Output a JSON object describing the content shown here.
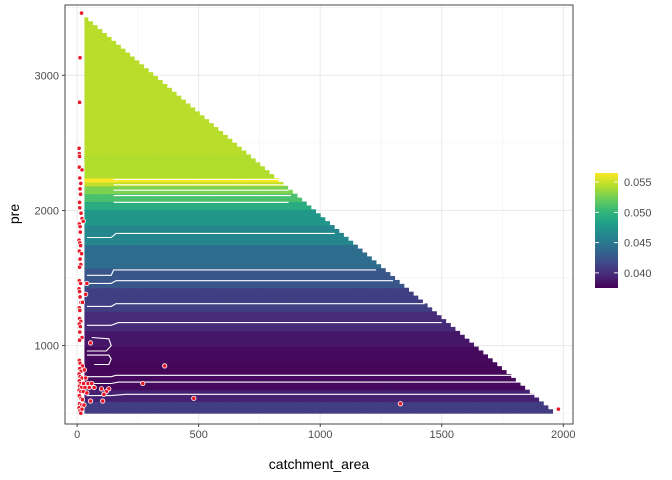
{
  "chart_data": {
    "type": "heatmap",
    "xlabel": "catchment_area",
    "ylabel": "pre",
    "xlim": [
      -50,
      2040
    ],
    "ylim": [
      420,
      3520
    ],
    "x_ticks": [
      0,
      500,
      1000,
      1500,
      2000
    ],
    "x_tick_labels": [
      "0",
      "500",
      "1000",
      "1500",
      "2000"
    ],
    "y_ticks": [
      1000,
      2000,
      3000
    ],
    "y_tick_labels": [
      "1000",
      "2000",
      "3000"
    ],
    "grid": true,
    "legend": {
      "position": "right",
      "type": "colorbar",
      "range": [
        0.0375,
        0.0565
      ],
      "ticks": [
        0.04,
        0.045,
        0.05,
        0.055
      ],
      "tick_labels": [
        "0.040",
        "0.045",
        "0.050",
        "0.055"
      ],
      "palette": "viridis"
    },
    "grid_region": {
      "x_start": 30,
      "top_left_y": 3450,
      "bottom_right": [
        1975,
        500
      ],
      "step_x": 39,
      "step_y": 29
    },
    "value_bands": [
      {
        "y0": 500,
        "y1": 580,
        "value": 0.0408
      },
      {
        "y0": 580,
        "y1": 680,
        "value": 0.0392
      },
      {
        "y0": 680,
        "y1": 780,
        "value": 0.038
      },
      {
        "y0": 780,
        "y1": 880,
        "value": 0.0378
      },
      {
        "y0": 880,
        "y1": 1000,
        "value": 0.038
      },
      {
        "y0": 1000,
        "y1": 1100,
        "value": 0.0387
      },
      {
        "y0": 1100,
        "y1": 1250,
        "value": 0.0397
      },
      {
        "y0": 1250,
        "y1": 1420,
        "value": 0.041
      },
      {
        "y0": 1420,
        "y1": 1560,
        "value": 0.0425
      },
      {
        "y0": 1560,
        "y1": 1760,
        "value": 0.0442
      },
      {
        "y0": 1760,
        "y1": 1900,
        "value": 0.0462
      },
      {
        "y0": 1900,
        "y1": 2000,
        "value": 0.0476
      },
      {
        "y0": 2000,
        "y1": 2080,
        "value": 0.0492
      },
      {
        "y0": 2080,
        "y1": 2130,
        "value": 0.051
      },
      {
        "y0": 2130,
        "y1": 2180,
        "value": 0.0527
      },
      {
        "y0": 2180,
        "y1": 2200,
        "value": 0.0548
      },
      {
        "y0": 2200,
        "y1": 2240,
        "value": 0.0565
      },
      {
        "y0": 2240,
        "y1": 2420,
        "value": 0.0543
      },
      {
        "y0": 2420,
        "y1": 3460,
        "value": 0.0545
      }
    ],
    "contours": [
      [
        [
          150,
          2230
        ],
        [
          850,
          2230
        ]
      ],
      [
        [
          150,
          2190
        ],
        [
          860,
          2190
        ]
      ],
      [
        [
          150,
          2150
        ],
        [
          870,
          2150
        ]
      ],
      [
        [
          150,
          2110
        ],
        [
          880,
          2110
        ]
      ],
      [
        [
          150,
          2060
        ],
        [
          870,
          2060
        ]
      ],
      [
        [
          40,
          1800
        ],
        [
          140,
          1800
        ],
        [
          160,
          1830
        ],
        [
          1060,
          1830
        ]
      ],
      [
        [
          40,
          1520
        ],
        [
          140,
          1520
        ],
        [
          150,
          1560
        ],
        [
          1230,
          1560
        ]
      ],
      [
        [
          40,
          1460
        ],
        [
          140,
          1460
        ],
        [
          160,
          1480
        ],
        [
          1300,
          1480
        ]
      ],
      [
        [
          40,
          1290
        ],
        [
          140,
          1290
        ],
        [
          160,
          1310
        ],
        [
          1430,
          1310
        ]
      ],
      [
        [
          40,
          1150
        ],
        [
          140,
          1150
        ],
        [
          170,
          1170
        ],
        [
          1500,
          1170
        ]
      ],
      [
        [
          40,
          960
        ],
        [
          120,
          960
        ],
        [
          140,
          1000
        ],
        [
          130,
          1050
        ],
        [
          60,
          1060
        ]
      ],
      [
        [
          40,
          930
        ],
        [
          130,
          930
        ],
        [
          140,
          900
        ],
        [
          130,
          860
        ],
        [
          70,
          860
        ]
      ],
      [
        [
          40,
          770
        ],
        [
          140,
          770
        ],
        [
          160,
          780
        ],
        [
          1790,
          780
        ]
      ],
      [
        [
          40,
          720
        ],
        [
          140,
          720
        ],
        [
          170,
          730
        ],
        [
          1830,
          730
        ]
      ],
      [
        [
          40,
          630
        ],
        [
          140,
          630
        ],
        [
          200,
          640
        ],
        [
          1890,
          640
        ]
      ]
    ],
    "points": [
      [
        18,
        3460
      ],
      [
        12,
        3130
      ],
      [
        10,
        2800
      ],
      [
        8,
        2460
      ],
      [
        9,
        2420
      ],
      [
        10,
        2400
      ],
      [
        9,
        2320
      ],
      [
        11,
        2240
      ],
      [
        20,
        2300
      ],
      [
        15,
        2200
      ],
      [
        12,
        2160
      ],
      [
        14,
        2120
      ],
      [
        10,
        2060
      ],
      [
        11,
        2020
      ],
      [
        16,
        1980
      ],
      [
        20,
        1940
      ],
      [
        25,
        1920
      ],
      [
        9,
        1900
      ],
      [
        12,
        1880
      ],
      [
        13,
        1840
      ],
      [
        8,
        1780
      ],
      [
        11,
        1760
      ],
      [
        14,
        1740
      ],
      [
        9,
        1700
      ],
      [
        18,
        1680
      ],
      [
        12,
        1640
      ],
      [
        15,
        1600
      ],
      [
        10,
        1580
      ],
      [
        9,
        1480
      ],
      [
        14,
        1460
      ],
      [
        40,
        1460
      ],
      [
        8,
        1420
      ],
      [
        10,
        1400
      ],
      [
        35,
        1380
      ],
      [
        12,
        1360
      ],
      [
        16,
        1320
      ],
      [
        22,
        1320
      ],
      [
        9,
        1280
      ],
      [
        11,
        1260
      ],
      [
        10,
        1200
      ],
      [
        15,
        1180
      ],
      [
        9,
        1160
      ],
      [
        13,
        1140
      ],
      [
        11,
        1100
      ],
      [
        20,
        1060
      ],
      [
        10,
        1040
      ],
      [
        55,
        1020
      ],
      [
        9,
        890
      ],
      [
        12,
        870
      ],
      [
        22,
        850
      ],
      [
        11,
        830
      ],
      [
        16,
        810
      ],
      [
        30,
        820
      ],
      [
        8,
        790
      ],
      [
        12,
        770
      ],
      [
        20,
        760
      ],
      [
        35,
        760
      ],
      [
        9,
        740
      ],
      [
        14,
        720
      ],
      [
        26,
        720
      ],
      [
        45,
        720
      ],
      [
        60,
        720
      ],
      [
        10,
        700
      ],
      [
        18,
        690
      ],
      [
        32,
        690
      ],
      [
        50,
        690
      ],
      [
        70,
        690
      ],
      [
        8,
        670
      ],
      [
        15,
        660
      ],
      [
        25,
        660
      ],
      [
        40,
        650
      ],
      [
        100,
        680
      ],
      [
        130,
        680
      ],
      [
        120,
        660
      ],
      [
        110,
        640
      ],
      [
        9,
        630
      ],
      [
        16,
        610
      ],
      [
        22,
        600
      ],
      [
        55,
        590
      ],
      [
        105,
        590
      ],
      [
        10,
        570
      ],
      [
        18,
        560
      ],
      [
        8,
        540
      ],
      [
        12,
        520
      ],
      [
        15,
        500
      ],
      [
        20,
        530
      ],
      [
        28,
        560
      ],
      [
        270,
        720
      ],
      [
        360,
        850
      ],
      [
        480,
        610
      ],
      [
        1330,
        570
      ],
      [
        1980,
        530
      ]
    ]
  }
}
